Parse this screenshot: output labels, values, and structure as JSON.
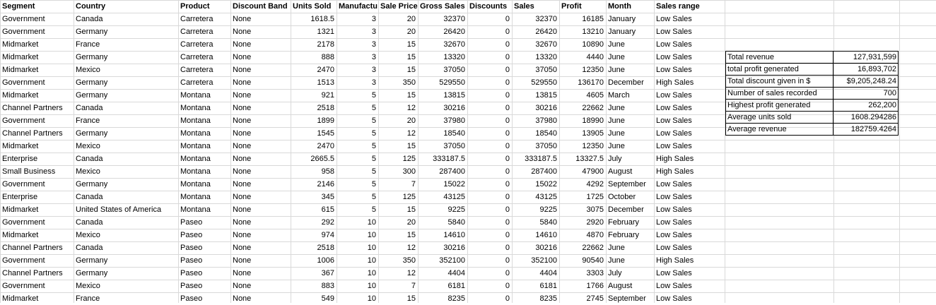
{
  "headers": [
    "Segment",
    "Country",
    "Product",
    "Discount Band",
    "Units Sold",
    "Manufactu",
    "Sale Price",
    "Gross Sales",
    "Discounts",
    "Sales",
    "Profit",
    "Month",
    "Sales range"
  ],
  "rows": [
    [
      "Government",
      "Canada",
      "Carretera",
      "None",
      "1618.5",
      "3",
      "20",
      "32370",
      "0",
      "32370",
      "16185",
      "January",
      "Low Sales"
    ],
    [
      "Government",
      "Germany",
      "Carretera",
      "None",
      "1321",
      "3",
      "20",
      "26420",
      "0",
      "26420",
      "13210",
      "January",
      "Low Sales"
    ],
    [
      "Midmarket",
      "France",
      "Carretera",
      "None",
      "2178",
      "3",
      "15",
      "32670",
      "0",
      "32670",
      "10890",
      "June",
      "Low Sales"
    ],
    [
      "Midmarket",
      "Germany",
      "Carretera",
      "None",
      "888",
      "3",
      "15",
      "13320",
      "0",
      "13320",
      "4440",
      "June",
      "Low Sales"
    ],
    [
      "Midmarket",
      "Mexico",
      "Carretera",
      "None",
      "2470",
      "3",
      "15",
      "37050",
      "0",
      "37050",
      "12350",
      "June",
      "Low Sales"
    ],
    [
      "Government",
      "Germany",
      "Carretera",
      "None",
      "1513",
      "3",
      "350",
      "529550",
      "0",
      "529550",
      "136170",
      "December",
      "High Sales"
    ],
    [
      "Midmarket",
      "Germany",
      "Montana",
      "None",
      "921",
      "5",
      "15",
      "13815",
      "0",
      "13815",
      "4605",
      "March",
      "Low Sales"
    ],
    [
      "Channel Partners",
      "Canada",
      "Montana",
      "None",
      "2518",
      "5",
      "12",
      "30216",
      "0",
      "30216",
      "22662",
      "June",
      "Low Sales"
    ],
    [
      "Government",
      "France",
      "Montana",
      "None",
      "1899",
      "5",
      "20",
      "37980",
      "0",
      "37980",
      "18990",
      "June",
      "Low Sales"
    ],
    [
      "Channel Partners",
      "Germany",
      "Montana",
      "None",
      "1545",
      "5",
      "12",
      "18540",
      "0",
      "18540",
      "13905",
      "June",
      "Low Sales"
    ],
    [
      "Midmarket",
      "Mexico",
      "Montana",
      "None",
      "2470",
      "5",
      "15",
      "37050",
      "0",
      "37050",
      "12350",
      "June",
      "Low Sales"
    ],
    [
      "Enterprise",
      "Canada",
      "Montana",
      "None",
      "2665.5",
      "5",
      "125",
      "333187.5",
      "0",
      "333187.5",
      "13327.5",
      "July",
      "High Sales"
    ],
    [
      "Small Business",
      "Mexico",
      "Montana",
      "None",
      "958",
      "5",
      "300",
      "287400",
      "0",
      "287400",
      "47900",
      "August",
      "High Sales"
    ],
    [
      "Government",
      "Germany",
      "Montana",
      "None",
      "2146",
      "5",
      "7",
      "15022",
      "0",
      "15022",
      "4292",
      "September",
      "Low Sales"
    ],
    [
      "Enterprise",
      "Canada",
      "Montana",
      "None",
      "345",
      "5",
      "125",
      "43125",
      "0",
      "43125",
      "1725",
      "October",
      "Low Sales"
    ],
    [
      "Midmarket",
      "United States of America",
      "Montana",
      "None",
      "615",
      "5",
      "15",
      "9225",
      "0",
      "9225",
      "3075",
      "December",
      "Low Sales"
    ],
    [
      "Government",
      "Canada",
      "Paseo",
      "None",
      "292",
      "10",
      "20",
      "5840",
      "0",
      "5840",
      "2920",
      "February",
      "Low Sales"
    ],
    [
      "Midmarket",
      "Mexico",
      "Paseo",
      "None",
      "974",
      "10",
      "15",
      "14610",
      "0",
      "14610",
      "4870",
      "February",
      "Low Sales"
    ],
    [
      "Channel Partners",
      "Canada",
      "Paseo",
      "None",
      "2518",
      "10",
      "12",
      "30216",
      "0",
      "30216",
      "22662",
      "June",
      "Low Sales"
    ],
    [
      "Government",
      "Germany",
      "Paseo",
      "None",
      "1006",
      "10",
      "350",
      "352100",
      "0",
      "352100",
      "90540",
      "June",
      "High Sales"
    ],
    [
      "Channel Partners",
      "Germany",
      "Paseo",
      "None",
      "367",
      "10",
      "12",
      "4404",
      "0",
      "4404",
      "3303",
      "July",
      "Low Sales"
    ],
    [
      "Government",
      "Mexico",
      "Paseo",
      "None",
      "883",
      "10",
      "7",
      "6181",
      "0",
      "6181",
      "1766",
      "August",
      "Low Sales"
    ],
    [
      "Midmarket",
      "France",
      "Paseo",
      "None",
      "549",
      "10",
      "15",
      "8235",
      "0",
      "8235",
      "2745",
      "September",
      "Low Sales"
    ]
  ],
  "summary": [
    {
      "label": "Total revenue",
      "value": "127,931,599"
    },
    {
      "label": "total profit generated",
      "value": "16,893,702"
    },
    {
      "label": "Total discount given in $",
      "value": "$9,205,248.24"
    },
    {
      "label": "Number of sales recorded",
      "value": "700"
    },
    {
      "label": "Highest profit generated",
      "value": "262,200"
    },
    {
      "label": "Average units sold",
      "value": "1608.294286"
    },
    {
      "label": "Average revenue",
      "value": "182759.4264"
    }
  ],
  "colors": {
    "gridline": "#d9d9d9",
    "text": "#000000"
  }
}
